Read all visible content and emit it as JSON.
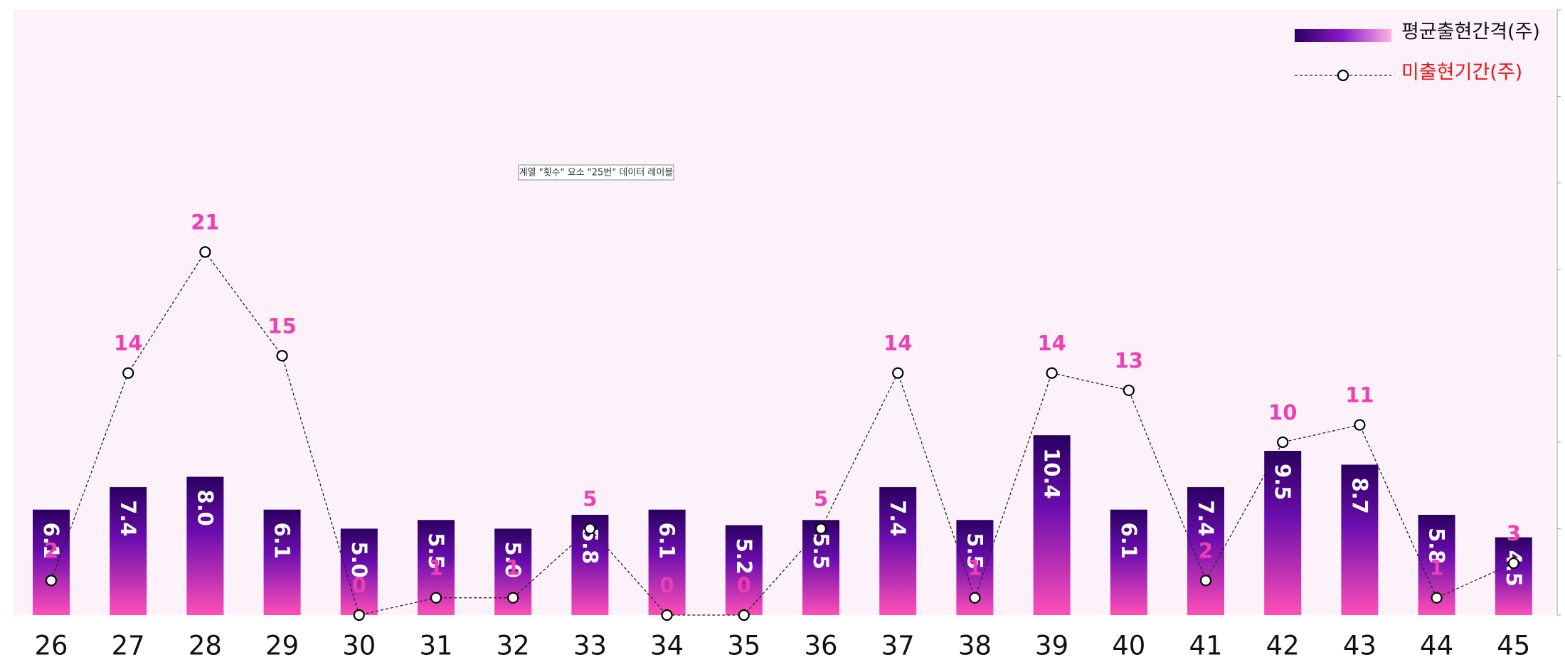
{
  "chart_data": {
    "type": "bar",
    "categories": [
      "26",
      "27",
      "28",
      "29",
      "30",
      "31",
      "32",
      "33",
      "34",
      "35",
      "36",
      "37",
      "38",
      "39",
      "40",
      "41",
      "42",
      "43",
      "44",
      "45"
    ],
    "series": [
      {
        "name": "평균출현간격(주)",
        "type": "bar",
        "values": [
          6.1,
          7.4,
          8.0,
          6.1,
          5.0,
          5.5,
          5.0,
          5.8,
          6.1,
          5.2,
          5.5,
          7.4,
          5.5,
          10.4,
          6.1,
          7.4,
          9.5,
          8.7,
          5.8,
          4.5
        ],
        "labels": [
          "6.1",
          "7.4",
          "8.0",
          "6.1",
          "5.0",
          "5.5",
          "5.0",
          "5.8",
          "6.1",
          "5.2",
          "5.5",
          "7.4",
          "5.5",
          "10.4",
          "6.1",
          "7.4",
          "9.5",
          "8.7",
          "5.8",
          "4.5"
        ],
        "color_top": "#2a0060",
        "color_mid": "#6a0dad",
        "color_bottom": "#ff4fb8"
      },
      {
        "name": "미출현기간(주)",
        "type": "line",
        "values": [
          2,
          14,
          21,
          15,
          0,
          1,
          1,
          5,
          0,
          0,
          5,
          14,
          1,
          14,
          13,
          2,
          10,
          11,
          1,
          3
        ],
        "color": "#222222",
        "label_color": "#ee3fb5",
        "legend_color": "#ee1111"
      }
    ],
    "ylim": [
      0,
      35
    ],
    "legend_position": "top-right",
    "plot_background": "#fdf2fa",
    "tooltip": "계열 \"횟수\" 요소 \"25번\" 데이터 레이블"
  }
}
